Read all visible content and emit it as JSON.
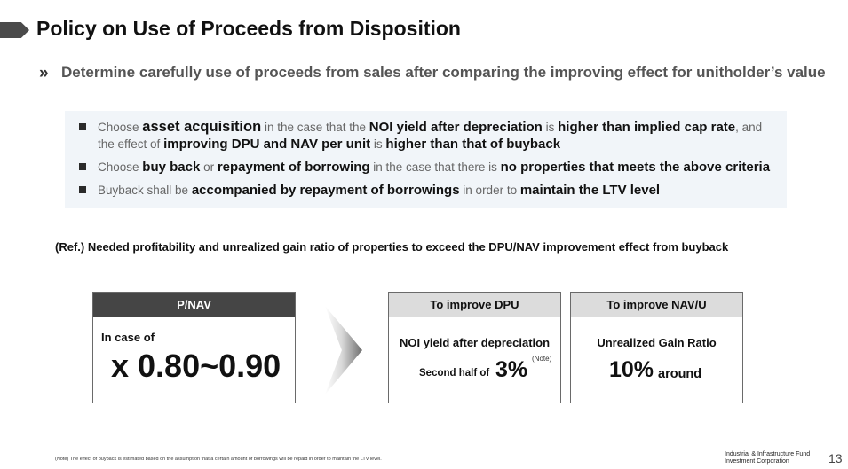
{
  "header": {
    "title": "Policy on Use of Proceeds from Disposition",
    "chevron": "»",
    "subtitle": "Determine carefully use of proceeds from sales after comparing the improving effect for unitholder’s value"
  },
  "bullets": [
    {
      "line1": [
        {
          "t": "Choose ",
          "b": false
        },
        {
          "t": "asset acquisition",
          "b": true,
          "big": true
        },
        {
          "t": " in the case that the ",
          "b": false
        },
        {
          "t": "NOI yield after depreciation",
          "b": true
        },
        {
          "t": " is ",
          "b": false
        },
        {
          "t": "higher than implied cap rate",
          "b": true
        },
        {
          "t": ", and",
          "b": false
        }
      ],
      "line2": [
        {
          "t": "the effect of ",
          "b": false
        },
        {
          "t": "improving DPU and NAV per unit",
          "b": true
        },
        {
          "t": " is ",
          "b": false
        },
        {
          "t": "higher than that of buyback",
          "b": true
        }
      ]
    },
    {
      "line1": [
        {
          "t": "Choose ",
          "b": false
        },
        {
          "t": "buy back",
          "b": true
        },
        {
          "t": " or ",
          "b": false
        },
        {
          "t": "repayment of borrowing",
          "b": true
        },
        {
          "t": " in the case that there is ",
          "b": false
        },
        {
          "t": "no properties that meets the above criteria",
          "b": true
        }
      ]
    },
    {
      "line1": [
        {
          "t": "Buyback shall be ",
          "b": false
        },
        {
          "t": "accompanied by repayment of borrowings",
          "b": true
        },
        {
          "t": " in order to ",
          "b": false
        },
        {
          "t": "maintain the LTV level",
          "b": true
        }
      ]
    }
  ],
  "reference": {
    "note": "(Ref.) Needed profitability and unrealized gain ratio of properties to exceed the DPU/NAV improvement effect from buyback"
  },
  "cards": {
    "pnav": {
      "header": "P/NAV",
      "label": "In case of",
      "value": "x 0.80~0.90"
    },
    "dpu": {
      "header": "To improve DPU",
      "line1": "NOI yield after depreciation",
      "prefix": "Second half of",
      "value": "3%",
      "note": "(Note)"
    },
    "nav": {
      "header": "To improve NAV/U",
      "line1": "Unrealized Gain Ratio",
      "value": "10%",
      "suffix": "around"
    }
  },
  "footer": {
    "footnote": "(Note) The effect of buyback is estimated based on the assumption that a certain amount of borrowings will be repaid in order to maintain the LTV level.",
    "company_line1": "Industrial & Infrastructure Fund",
    "company_line2": "Investment Corporation",
    "page_number": "13"
  }
}
